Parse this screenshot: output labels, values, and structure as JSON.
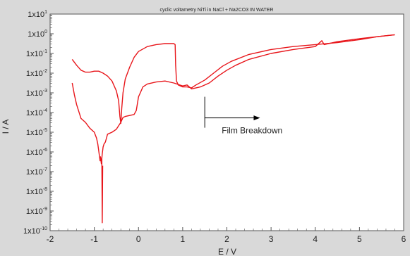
{
  "chart_data": {
    "type": "line",
    "title": "cyclic voltametry NiTi in NaCl + Na2CO3 IN WATER",
    "xlabel": "E / V",
    "ylabel": "I / A",
    "xlim": [
      -2,
      6
    ],
    "ylim_exp": [
      -10,
      1
    ],
    "y_scale": "log",
    "grid": false,
    "colors": {
      "frame": "#d9d9d9",
      "plot_bg": "#ffffff",
      "axis": "#555555",
      "trace": "#e8161b",
      "annotation": "#000000"
    },
    "x_ticks": [
      "-2",
      "-1",
      "0",
      "1",
      "2",
      "3",
      "4",
      "5",
      "6"
    ],
    "y_ticks": [
      {
        "base": "1x10",
        "exp": "1"
      },
      {
        "base": "1x10",
        "exp": "0"
      },
      {
        "base": "1x10",
        "exp": "-1"
      },
      {
        "base": "1x10",
        "exp": "-2"
      },
      {
        "base": "1x10",
        "exp": "-3"
      },
      {
        "base": "1x10",
        "exp": "-4"
      },
      {
        "base": "1x10",
        "exp": "-5"
      },
      {
        "base": "1x10",
        "exp": "-6"
      },
      {
        "base": "1x10",
        "exp": "-7"
      },
      {
        "base": "1x10",
        "exp": "-8"
      },
      {
        "base": "1x10",
        "exp": "-9"
      },
      {
        "base": "1x10",
        "exp": "-10"
      }
    ],
    "annotation": {
      "text": "Film Breakdown",
      "at_x": 1.5,
      "at_log_i": -3.2,
      "arrow_to_x": 2.75
    },
    "series": [
      {
        "segment": "forward-1",
        "points": [
          [
            -1.5,
            -1.3
          ],
          [
            -1.4,
            -1.6
          ],
          [
            -1.3,
            -1.85
          ],
          [
            -1.2,
            -1.95
          ],
          [
            -1.1,
            -1.95
          ],
          [
            -1.0,
            -1.9
          ],
          [
            -0.9,
            -1.9
          ],
          [
            -0.8,
            -2.0
          ],
          [
            -0.7,
            -2.15
          ],
          [
            -0.6,
            -2.4
          ],
          [
            -0.5,
            -2.9
          ],
          [
            -0.45,
            -3.4
          ],
          [
            -0.42,
            -4.2
          ],
          [
            -0.4,
            -4.55
          ],
          [
            -0.38,
            -3.8
          ],
          [
            -0.35,
            -3.0
          ],
          [
            -0.3,
            -2.3
          ],
          [
            -0.2,
            -1.7
          ],
          [
            -0.1,
            -1.2
          ],
          [
            0.0,
            -0.9
          ],
          [
            0.2,
            -0.65
          ],
          [
            0.4,
            -0.55
          ],
          [
            0.6,
            -0.5
          ],
          [
            0.8,
            -0.5
          ],
          [
            0.83,
            -0.55
          ],
          [
            0.84,
            -1.6
          ],
          [
            0.86,
            -2.4
          ],
          [
            0.9,
            -2.6
          ],
          [
            1.0,
            -2.7
          ],
          [
            1.1,
            -2.7
          ],
          [
            1.2,
            -2.75
          ],
          [
            1.3,
            -2.6
          ],
          [
            1.5,
            -2.35
          ],
          [
            1.7,
            -2.0
          ],
          [
            1.9,
            -1.65
          ],
          [
            2.1,
            -1.4
          ],
          [
            2.5,
            -1.05
          ],
          [
            3.0,
            -0.8
          ],
          [
            3.5,
            -0.65
          ],
          [
            4.0,
            -0.55
          ],
          [
            4.5,
            -0.45
          ],
          [
            5.0,
            -0.3
          ],
          [
            5.4,
            -0.15
          ],
          [
            5.8,
            -0.05
          ]
        ]
      },
      {
        "segment": "reverse",
        "points": [
          [
            5.8,
            -0.05
          ],
          [
            5.5,
            -0.12
          ],
          [
            5.0,
            -0.25
          ],
          [
            4.5,
            -0.4
          ],
          [
            4.2,
            -0.55
          ],
          [
            4.15,
            -0.35
          ],
          [
            4.0,
            -0.65
          ],
          [
            3.5,
            -0.8
          ],
          [
            3.0,
            -1.0
          ],
          [
            2.5,
            -1.3
          ],
          [
            2.2,
            -1.6
          ],
          [
            2.0,
            -1.85
          ],
          [
            1.8,
            -2.15
          ],
          [
            1.6,
            -2.5
          ],
          [
            1.4,
            -2.7
          ],
          [
            1.2,
            -2.8
          ],
          [
            1.1,
            -2.6
          ],
          [
            1.0,
            -2.65
          ],
          [
            0.8,
            -2.5
          ],
          [
            0.6,
            -2.4
          ],
          [
            0.4,
            -2.45
          ],
          [
            0.2,
            -2.55
          ],
          [
            0.1,
            -2.7
          ],
          [
            0.0,
            -3.2
          ],
          [
            -0.05,
            -3.9
          ],
          [
            -0.1,
            -4.1
          ],
          [
            -0.2,
            -4.15
          ],
          [
            -0.3,
            -4.2
          ],
          [
            -0.35,
            -4.25
          ],
          [
            -0.4,
            -4.5
          ],
          [
            -0.5,
            -4.85
          ],
          [
            -0.6,
            -5.0
          ],
          [
            -0.7,
            -5.1
          ],
          [
            -0.75,
            -5.5
          ],
          [
            -0.78,
            -5.6
          ],
          [
            -0.8,
            -5.75
          ],
          [
            -0.82,
            -6.1
          ],
          [
            -0.84,
            -6.6
          ],
          [
            -0.86,
            -6.25
          ],
          [
            -0.87,
            -6.45
          ],
          [
            -0.89,
            -6.1
          ],
          [
            -0.92,
            -5.6
          ],
          [
            -0.95,
            -5.3
          ],
          [
            -1.0,
            -5.0
          ],
          [
            -1.1,
            -4.8
          ],
          [
            -1.2,
            -4.5
          ],
          [
            -1.3,
            -4.3
          ],
          [
            -1.4,
            -3.6
          ],
          [
            -1.45,
            -3.1
          ],
          [
            -1.5,
            -2.5
          ]
        ]
      },
      {
        "segment": "spike",
        "points": [
          [
            -0.83,
            -6.3
          ],
          [
            -0.82,
            -9.6
          ],
          [
            -0.81,
            -6.7
          ]
        ]
      }
    ]
  }
}
